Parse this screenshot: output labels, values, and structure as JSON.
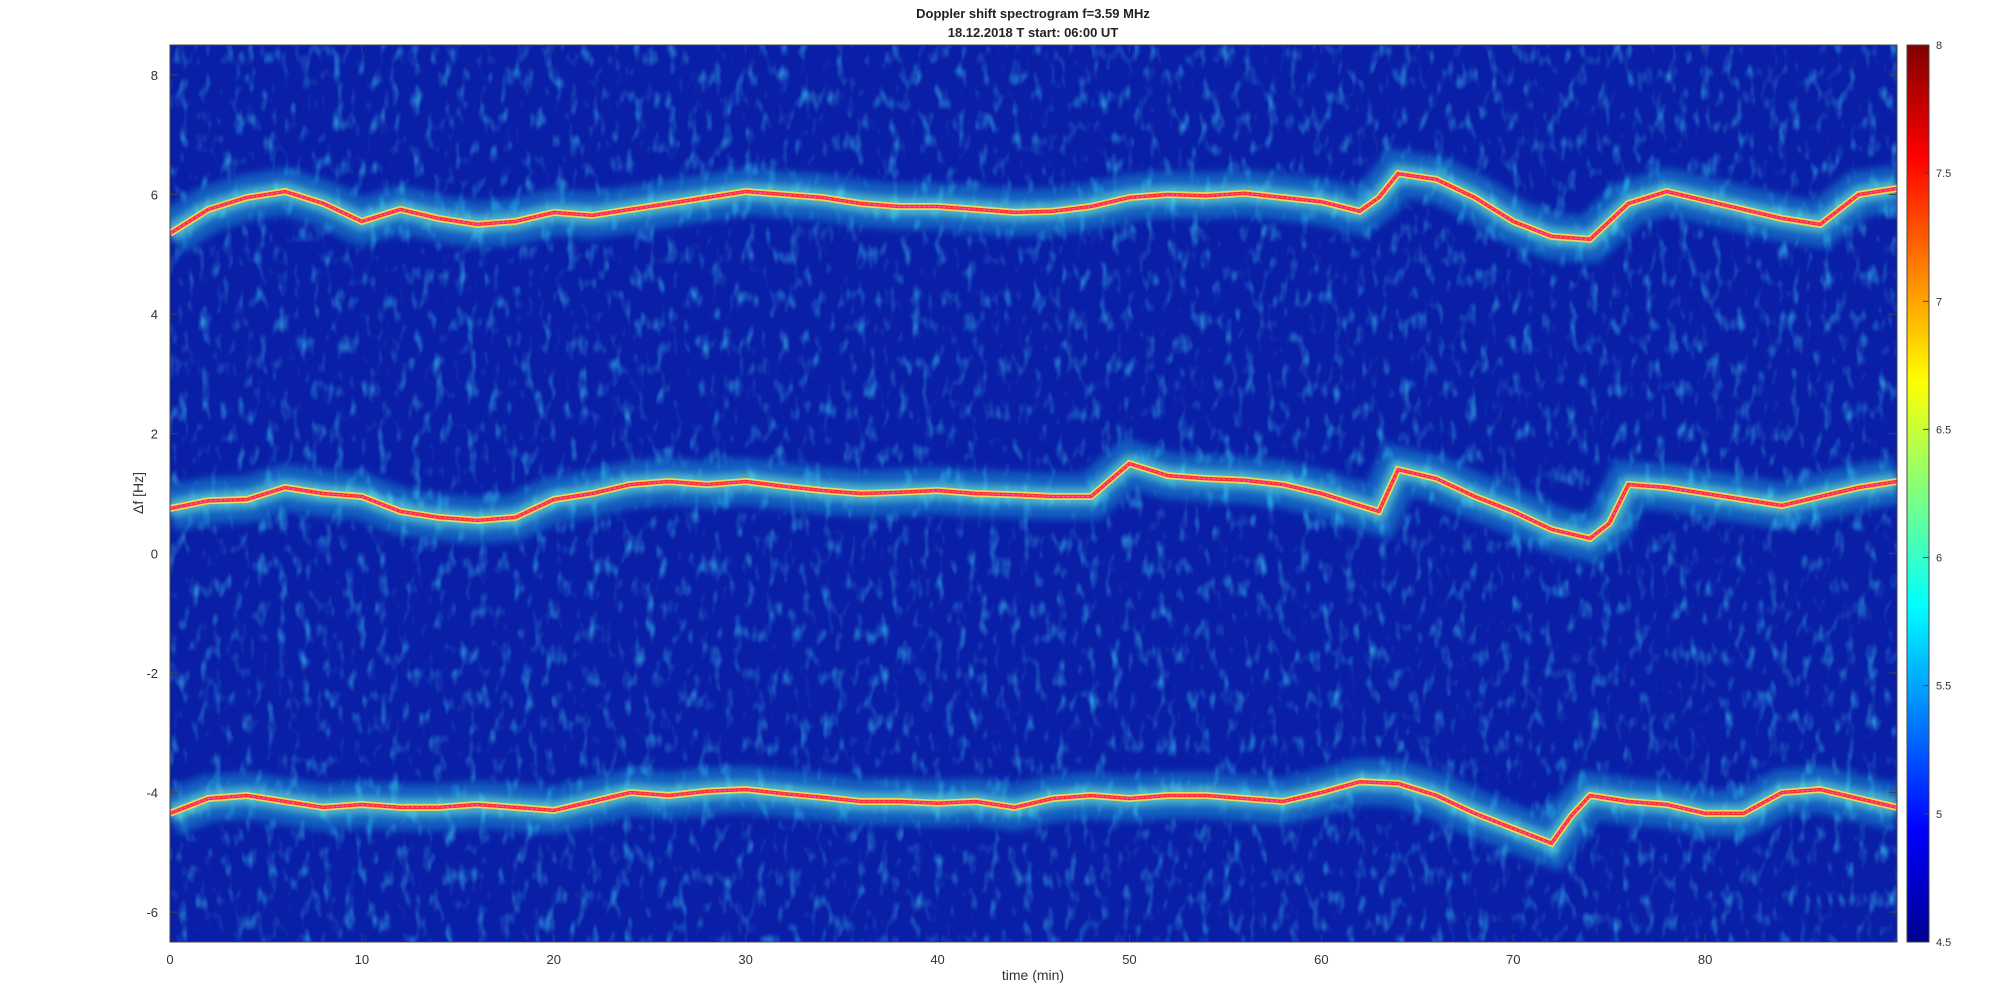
{
  "chart_data": {
    "type": "heatmap",
    "title": "Doppler shift spectrogram f=3.59 MHz",
    "subtitle": "18.12.2018   T start: 06:00 UT",
    "xlabel": "time (min)",
    "ylabel": "Δf [Hz]",
    "xlim": [
      0,
      90
    ],
    "ylim": [
      -6.5,
      8.5
    ],
    "x_ticks": [
      0,
      10,
      20,
      30,
      40,
      50,
      60,
      70,
      80
    ],
    "y_ticks": [
      -6,
      -4,
      -2,
      0,
      2,
      4,
      6,
      8
    ],
    "colorbar": {
      "colormap": "jet",
      "range": [
        4.5,
        8
      ],
      "ticks": [
        "4.5",
        "5",
        "5.5",
        "6",
        "6.5",
        "7",
        "7.5",
        "8"
      ]
    },
    "background_color": "#0a1fa8",
    "traces": [
      {
        "color": "#ff3030",
        "points": [
          [
            0,
            5.35
          ],
          [
            2,
            5.75
          ],
          [
            4,
            5.95
          ],
          [
            6,
            6.05
          ],
          [
            8,
            5.85
          ],
          [
            10,
            5.55
          ],
          [
            12,
            5.75
          ],
          [
            14,
            5.6
          ],
          [
            16,
            5.5
          ],
          [
            18,
            5.55
          ],
          [
            20,
            5.7
          ],
          [
            22,
            5.65
          ],
          [
            24,
            5.75
          ],
          [
            26,
            5.85
          ],
          [
            28,
            5.95
          ],
          [
            30,
            6.05
          ],
          [
            32,
            6.0
          ],
          [
            34,
            5.95
          ],
          [
            36,
            5.85
          ],
          [
            38,
            5.8
          ],
          [
            40,
            5.8
          ],
          [
            42,
            5.75
          ],
          [
            44,
            5.7
          ],
          [
            46,
            5.72
          ],
          [
            48,
            5.8
          ],
          [
            50,
            5.95
          ],
          [
            52,
            6.0
          ],
          [
            54,
            5.98
          ],
          [
            56,
            6.02
          ],
          [
            58,
            5.95
          ],
          [
            60,
            5.88
          ],
          [
            62,
            5.72
          ],
          [
            63,
            5.95
          ],
          [
            64,
            6.35
          ],
          [
            66,
            6.25
          ],
          [
            68,
            5.95
          ],
          [
            70,
            5.55
          ],
          [
            72,
            5.3
          ],
          [
            74,
            5.25
          ],
          [
            76,
            5.85
          ],
          [
            78,
            6.05
          ],
          [
            80,
            5.9
          ],
          [
            82,
            5.75
          ],
          [
            84,
            5.6
          ],
          [
            86,
            5.5
          ],
          [
            88,
            6.0
          ],
          [
            90,
            6.1
          ]
        ]
      },
      {
        "color": "#ff3030",
        "points": [
          [
            0,
            0.75
          ],
          [
            2,
            0.88
          ],
          [
            4,
            0.9
          ],
          [
            6,
            1.1
          ],
          [
            8,
            1.0
          ],
          [
            10,
            0.95
          ],
          [
            12,
            0.7
          ],
          [
            14,
            0.6
          ],
          [
            16,
            0.55
          ],
          [
            18,
            0.6
          ],
          [
            20,
            0.9
          ],
          [
            22,
            1.0
          ],
          [
            24,
            1.15
          ],
          [
            26,
            1.2
          ],
          [
            28,
            1.15
          ],
          [
            30,
            1.2
          ],
          [
            32,
            1.12
          ],
          [
            34,
            1.05
          ],
          [
            36,
            1.0
          ],
          [
            38,
            1.02
          ],
          [
            40,
            1.05
          ],
          [
            42,
            1.0
          ],
          [
            44,
            0.98
          ],
          [
            46,
            0.95
          ],
          [
            48,
            0.95
          ],
          [
            50,
            1.5
          ],
          [
            52,
            1.3
          ],
          [
            54,
            1.25
          ],
          [
            56,
            1.22
          ],
          [
            58,
            1.15
          ],
          [
            60,
            1.0
          ],
          [
            62,
            0.8
          ],
          [
            63,
            0.7
          ],
          [
            64,
            1.4
          ],
          [
            66,
            1.25
          ],
          [
            68,
            0.95
          ],
          [
            70,
            0.7
          ],
          [
            72,
            0.4
          ],
          [
            74,
            0.25
          ],
          [
            75,
            0.5
          ],
          [
            76,
            1.15
          ],
          [
            78,
            1.1
          ],
          [
            80,
            1.0
          ],
          [
            82,
            0.9
          ],
          [
            84,
            0.8
          ],
          [
            86,
            0.95
          ],
          [
            88,
            1.1
          ],
          [
            90,
            1.2
          ]
        ]
      },
      {
        "color": "#ff3030",
        "points": [
          [
            0,
            -4.35
          ],
          [
            2,
            -4.1
          ],
          [
            4,
            -4.05
          ],
          [
            6,
            -4.15
          ],
          [
            8,
            -4.25
          ],
          [
            10,
            -4.2
          ],
          [
            12,
            -4.25
          ],
          [
            14,
            -4.25
          ],
          [
            16,
            -4.2
          ],
          [
            18,
            -4.25
          ],
          [
            20,
            -4.3
          ],
          [
            22,
            -4.15
          ],
          [
            24,
            -4.0
          ],
          [
            26,
            -4.05
          ],
          [
            28,
            -3.98
          ],
          [
            30,
            -3.95
          ],
          [
            32,
            -4.02
          ],
          [
            34,
            -4.08
          ],
          [
            36,
            -4.15
          ],
          [
            38,
            -4.15
          ],
          [
            40,
            -4.18
          ],
          [
            42,
            -4.15
          ],
          [
            44,
            -4.25
          ],
          [
            46,
            -4.1
          ],
          [
            48,
            -4.05
          ],
          [
            50,
            -4.1
          ],
          [
            52,
            -4.05
          ],
          [
            54,
            -4.05
          ],
          [
            56,
            -4.1
          ],
          [
            58,
            -4.15
          ],
          [
            60,
            -4.0
          ],
          [
            62,
            -3.82
          ],
          [
            64,
            -3.85
          ],
          [
            66,
            -4.05
          ],
          [
            68,
            -4.35
          ],
          [
            70,
            -4.6
          ],
          [
            72,
            -4.85
          ],
          [
            73,
            -4.4
          ],
          [
            74,
            -4.05
          ],
          [
            76,
            -4.15
          ],
          [
            78,
            -4.2
          ],
          [
            80,
            -4.35
          ],
          [
            82,
            -4.35
          ],
          [
            84,
            -4.0
          ],
          [
            86,
            -3.95
          ],
          [
            88,
            -4.1
          ],
          [
            90,
            -4.25
          ]
        ]
      }
    ]
  }
}
